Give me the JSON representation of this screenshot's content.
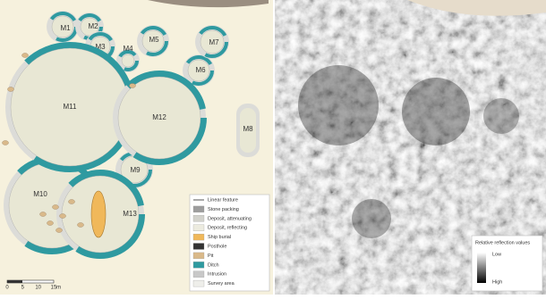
{
  "plan": {
    "mounds": [
      {
        "label": "M1"
      },
      {
        "label": "M2"
      },
      {
        "label": "M3"
      },
      {
        "label": "M4"
      },
      {
        "label": "M5"
      },
      {
        "label": "M6"
      },
      {
        "label": "M7"
      },
      {
        "label": "M8"
      },
      {
        "label": "M9"
      },
      {
        "label": "M10"
      },
      {
        "label": "M11"
      },
      {
        "label": "M12"
      },
      {
        "label": "M13"
      }
    ],
    "legend": [
      "Linear feature",
      "Stone packing",
      "Deposit, attenuating",
      "Deposit, reflecting",
      "Ship burial",
      "Posthole",
      "Pit",
      "Ditch",
      "Intrusion",
      "Survey area"
    ],
    "scale": {
      "ticks": [
        "0",
        "5",
        "10",
        "15"
      ],
      "unit": "m"
    }
  },
  "reflection": {
    "legend_title": "Relative reflection values",
    "low": "Low",
    "high": "High"
  }
}
